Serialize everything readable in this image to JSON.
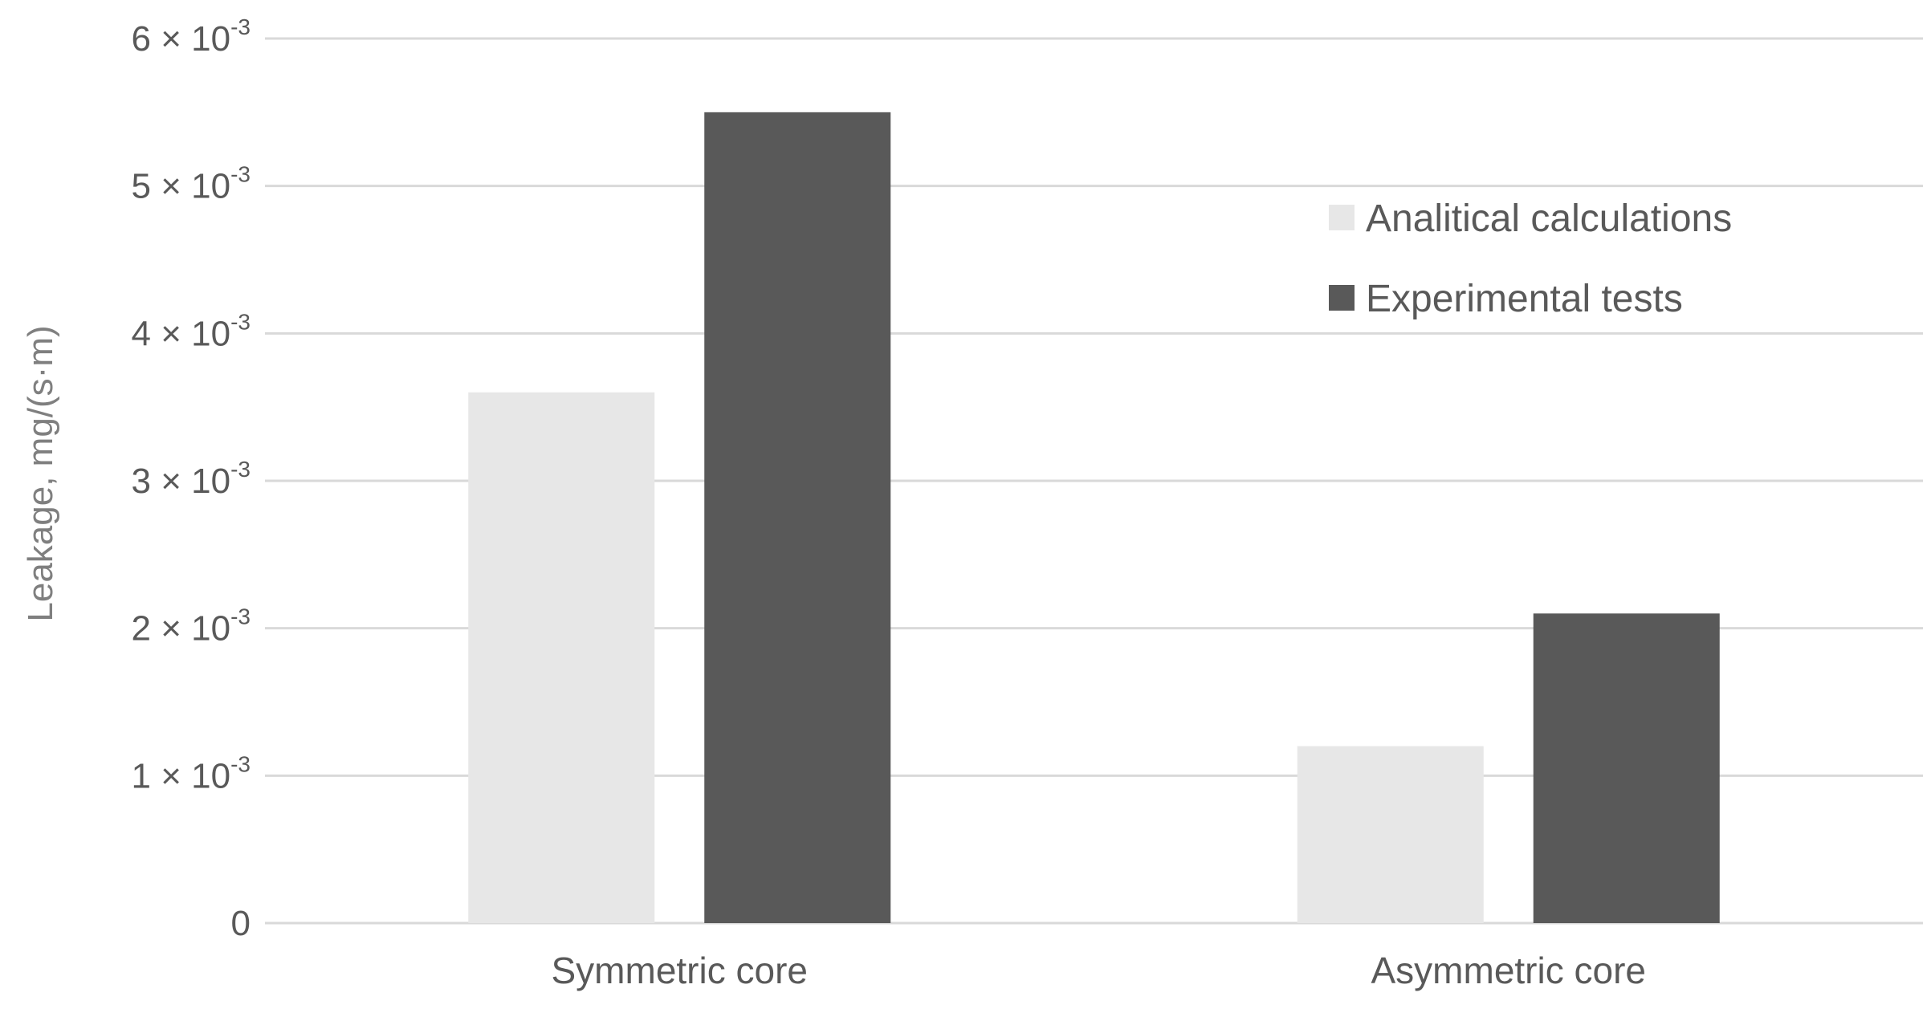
{
  "chart_data": {
    "type": "bar",
    "title": "",
    "xlabel": "",
    "ylabel": "Leakage,  mg/(s·m)",
    "categories": [
      "Symmetric core",
      "Asymmetric core"
    ],
    "series": [
      {
        "name": "Analitical calculations",
        "values": [
          0.0036,
          0.0012
        ],
        "color": "#e7e7e7"
      },
      {
        "name": "Experimental tests",
        "values": [
          0.0055,
          0.0021
        ],
        "color": "#595959"
      }
    ],
    "ylim": [
      0,
      0.006
    ],
    "yticks": [
      {
        "value": 0,
        "base": "0",
        "exp": ""
      },
      {
        "value": 0.001,
        "base": "1 × 10",
        "exp": "-3"
      },
      {
        "value": 0.002,
        "base": "2 × 10",
        "exp": "-3"
      },
      {
        "value": 0.003,
        "base": "3 × 10",
        "exp": "-3"
      },
      {
        "value": 0.004,
        "base": "4 × 10",
        "exp": "-3"
      },
      {
        "value": 0.005,
        "base": "5 × 10",
        "exp": "-3"
      },
      {
        "value": 0.006,
        "base": "6 × 10",
        "exp": "-3"
      }
    ],
    "grid": true,
    "gridline_color": "#d9d9d9",
    "legend_position": "top-right"
  }
}
